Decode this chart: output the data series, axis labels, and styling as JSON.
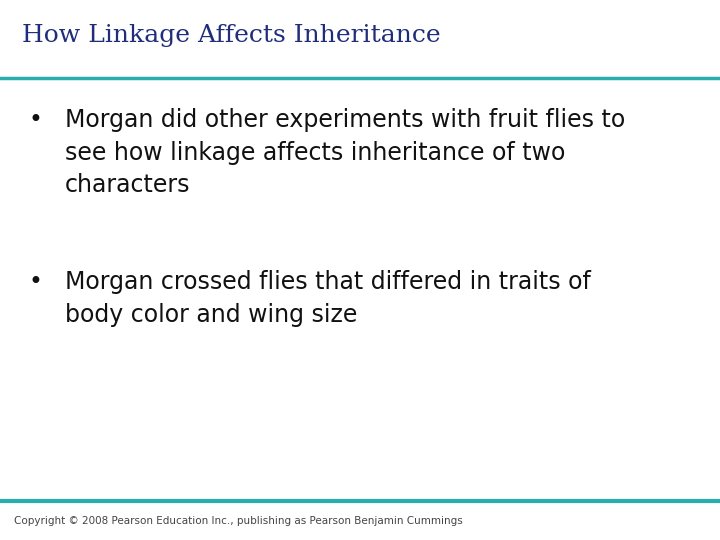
{
  "title": "How Linkage Affects Inheritance",
  "title_color": "#1F2D7B",
  "title_fontsize": 18,
  "title_font": "serif",
  "bullet1_line1": "Morgan did other experiments with fruit flies to",
  "bullet1_line2": "see how linkage affects inheritance of two",
  "bullet1_line3": "characters",
  "bullet2_line1": "Morgan crossed flies that differed in traits of",
  "bullet2_line2": "body color and wing size",
  "bullet_color": "#111111",
  "bullet_fontsize": 17,
  "bullet_font": "sans-serif",
  "top_line_color": "#2aadad",
  "bottom_line_color": "#2aadad",
  "background_color": "#ffffff",
  "copyright_text": "Copyright © 2008 Pearson Education Inc., publishing as Pearson Benjamin Cummings",
  "copyright_fontsize": 7.5,
  "copyright_color": "#444444"
}
